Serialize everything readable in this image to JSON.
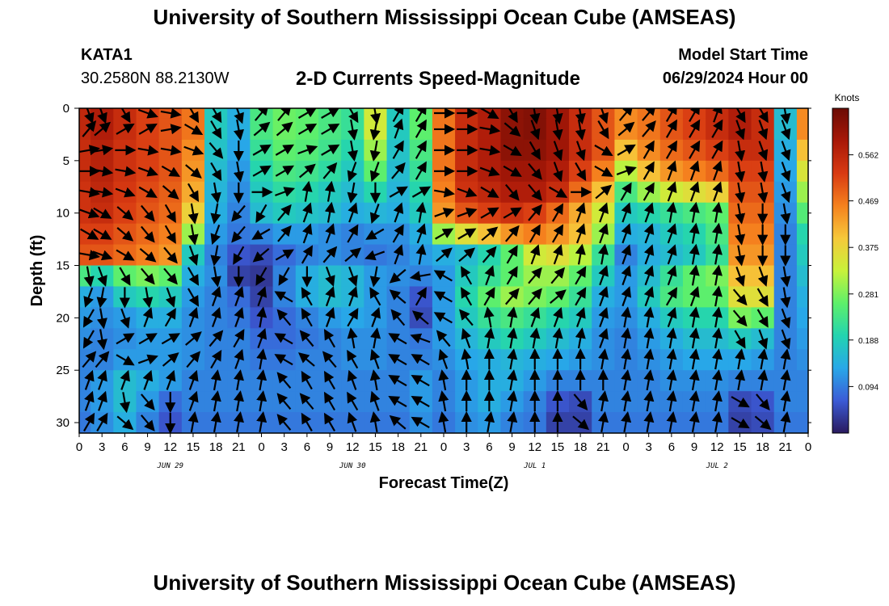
{
  "header": {
    "title": "University of Southern Mississippi Ocean Cube (AMSEAS)",
    "station": "KATA1",
    "coords": "30.2580N  88.2130W",
    "subtitle": "2-D Currents Speed-Magnitude",
    "start_label": "Model Start Time",
    "start_value": "06/29/2024 Hour 00"
  },
  "footer": {
    "title": "University of Southern Mississippi Ocean Cube (AMSEAS)"
  },
  "chart_data": {
    "type": "heatmap",
    "title": "2-D Currents Speed-Magnitude",
    "xlabel": "Forecast Time(Z)",
    "ylabel": "Depth (ft)",
    "x_ticks": [
      "0",
      "3",
      "6",
      "9",
      "12",
      "15",
      "18",
      "21",
      "0",
      "3",
      "6",
      "9",
      "12",
      "15",
      "18",
      "21",
      "0",
      "3",
      "6",
      "9",
      "12",
      "15",
      "18",
      "21",
      "0",
      "3",
      "6",
      "9",
      "12",
      "15",
      "18",
      "21",
      "0"
    ],
    "date_labels": [
      {
        "hour": 12,
        "label": "JUN 29"
      },
      {
        "hour": 36,
        "label": "JUN 30"
      },
      {
        "hour": 60,
        "label": "JUL 1"
      },
      {
        "hour": 84,
        "label": "JUL 2"
      }
    ],
    "xlim_hours": [
      0,
      96
    ],
    "ylim_depth_ft": [
      0,
      31
    ],
    "y_ticks": [
      0,
      5,
      10,
      15,
      20,
      25,
      30
    ],
    "y_inverted": true,
    "colorbar": {
      "label": "Knots",
      "ticks": [
        0.094,
        0.188,
        0.281,
        0.375,
        0.469,
        0.562
      ],
      "range": [
        0,
        0.656
      ],
      "colors": [
        "#2a1a5e",
        "#3b5bd6",
        "#28a8e8",
        "#23d4b0",
        "#5ef06a",
        "#c8f23a",
        "#f6c83a",
        "#f5811e",
        "#d83a12",
        "#a81808",
        "#6b0c04"
      ]
    },
    "depths_ft": [
      0,
      2,
      4,
      6,
      8,
      10,
      12,
      14,
      16,
      18,
      20,
      22,
      24,
      26,
      28,
      30
    ],
    "times_hours": [
      0,
      3,
      6,
      9,
      12,
      15,
      18,
      21,
      24,
      27,
      30,
      33,
      36,
      39,
      42,
      45,
      48,
      51,
      54,
      57,
      60,
      63,
      66,
      69,
      72,
      75,
      78,
      81,
      84,
      87,
      90,
      93,
      96
    ],
    "speed_knots": [
      [
        0.56,
        0.58,
        0.55,
        0.52,
        0.5,
        0.47,
        0.18,
        0.14,
        0.24,
        0.27,
        0.26,
        0.24,
        0.22,
        0.34,
        0.18,
        0.26,
        0.47,
        0.55,
        0.58,
        0.62,
        0.63,
        0.6,
        0.55,
        0.5,
        0.45,
        0.47,
        0.5,
        0.52,
        0.55,
        0.58,
        0.55,
        0.16,
        0.45
      ],
      [
        0.56,
        0.58,
        0.55,
        0.52,
        0.5,
        0.47,
        0.18,
        0.14,
        0.24,
        0.27,
        0.26,
        0.24,
        0.22,
        0.34,
        0.18,
        0.26,
        0.47,
        0.55,
        0.58,
        0.62,
        0.63,
        0.6,
        0.55,
        0.5,
        0.45,
        0.47,
        0.5,
        0.52,
        0.55,
        0.58,
        0.55,
        0.16,
        0.45
      ],
      [
        0.55,
        0.57,
        0.54,
        0.52,
        0.5,
        0.45,
        0.17,
        0.13,
        0.22,
        0.26,
        0.25,
        0.23,
        0.2,
        0.3,
        0.17,
        0.24,
        0.47,
        0.55,
        0.58,
        0.62,
        0.62,
        0.6,
        0.55,
        0.5,
        0.4,
        0.45,
        0.48,
        0.5,
        0.52,
        0.55,
        0.55,
        0.14,
        0.4
      ],
      [
        0.55,
        0.57,
        0.54,
        0.52,
        0.5,
        0.44,
        0.16,
        0.12,
        0.2,
        0.24,
        0.23,
        0.21,
        0.18,
        0.26,
        0.16,
        0.22,
        0.47,
        0.55,
        0.58,
        0.6,
        0.6,
        0.58,
        0.52,
        0.46,
        0.32,
        0.4,
        0.44,
        0.46,
        0.48,
        0.52,
        0.52,
        0.13,
        0.35
      ],
      [
        0.54,
        0.56,
        0.53,
        0.51,
        0.49,
        0.42,
        0.15,
        0.11,
        0.18,
        0.21,
        0.2,
        0.18,
        0.16,
        0.2,
        0.15,
        0.2,
        0.46,
        0.54,
        0.56,
        0.58,
        0.58,
        0.55,
        0.48,
        0.4,
        0.24,
        0.3,
        0.34,
        0.36,
        0.38,
        0.5,
        0.5,
        0.12,
        0.3
      ],
      [
        0.54,
        0.55,
        0.52,
        0.5,
        0.48,
        0.38,
        0.14,
        0.1,
        0.16,
        0.18,
        0.17,
        0.16,
        0.14,
        0.15,
        0.14,
        0.18,
        0.44,
        0.5,
        0.52,
        0.54,
        0.52,
        0.48,
        0.42,
        0.34,
        0.18,
        0.2,
        0.22,
        0.24,
        0.26,
        0.48,
        0.48,
        0.11,
        0.25
      ],
      [
        0.52,
        0.52,
        0.5,
        0.48,
        0.46,
        0.3,
        0.12,
        0.09,
        0.1,
        0.12,
        0.12,
        0.11,
        0.1,
        0.11,
        0.11,
        0.14,
        0.3,
        0.36,
        0.4,
        0.44,
        0.46,
        0.44,
        0.4,
        0.3,
        0.14,
        0.15,
        0.18,
        0.2,
        0.24,
        0.46,
        0.46,
        0.1,
        0.2
      ],
      [
        0.5,
        0.5,
        0.48,
        0.46,
        0.44,
        0.18,
        0.1,
        0.06,
        0.05,
        0.08,
        0.1,
        0.11,
        0.1,
        0.09,
        0.1,
        0.12,
        0.14,
        0.16,
        0.2,
        0.26,
        0.34,
        0.36,
        0.32,
        0.22,
        0.1,
        0.14,
        0.16,
        0.18,
        0.22,
        0.44,
        0.44,
        0.1,
        0.18
      ],
      [
        0.24,
        0.2,
        0.26,
        0.28,
        0.26,
        0.14,
        0.11,
        0.04,
        0.03,
        0.1,
        0.14,
        0.16,
        0.15,
        0.12,
        0.11,
        0.1,
        0.12,
        0.18,
        0.22,
        0.26,
        0.3,
        0.3,
        0.26,
        0.18,
        0.12,
        0.16,
        0.22,
        0.26,
        0.28,
        0.4,
        0.4,
        0.1,
        0.16
      ],
      [
        0.14,
        0.12,
        0.18,
        0.2,
        0.18,
        0.12,
        0.1,
        0.08,
        0.04,
        0.1,
        0.14,
        0.16,
        0.15,
        0.12,
        0.1,
        0.06,
        0.12,
        0.2,
        0.26,
        0.3,
        0.28,
        0.26,
        0.22,
        0.14,
        0.12,
        0.18,
        0.24,
        0.26,
        0.26,
        0.36,
        0.36,
        0.1,
        0.14
      ],
      [
        0.12,
        0.11,
        0.12,
        0.14,
        0.14,
        0.11,
        0.1,
        0.09,
        0.06,
        0.08,
        0.1,
        0.12,
        0.13,
        0.12,
        0.1,
        0.05,
        0.12,
        0.18,
        0.22,
        0.24,
        0.22,
        0.2,
        0.18,
        0.12,
        0.11,
        0.14,
        0.18,
        0.2,
        0.2,
        0.28,
        0.26,
        0.1,
        0.13
      ],
      [
        0.11,
        0.1,
        0.11,
        0.12,
        0.12,
        0.11,
        0.1,
        0.1,
        0.08,
        0.08,
        0.09,
        0.1,
        0.11,
        0.11,
        0.1,
        0.09,
        0.12,
        0.15,
        0.18,
        0.2,
        0.18,
        0.16,
        0.14,
        0.11,
        0.1,
        0.12,
        0.14,
        0.16,
        0.16,
        0.18,
        0.16,
        0.1,
        0.12
      ],
      [
        0.1,
        0.1,
        0.12,
        0.12,
        0.12,
        0.11,
        0.1,
        0.1,
        0.09,
        0.09,
        0.1,
        0.1,
        0.11,
        0.11,
        0.1,
        0.1,
        0.11,
        0.13,
        0.14,
        0.15,
        0.14,
        0.13,
        0.12,
        0.11,
        0.1,
        0.11,
        0.12,
        0.13,
        0.13,
        0.13,
        0.12,
        0.1,
        0.11
      ],
      [
        0.1,
        0.12,
        0.16,
        0.14,
        0.12,
        0.1,
        0.1,
        0.1,
        0.1,
        0.1,
        0.1,
        0.1,
        0.1,
        0.1,
        0.1,
        0.12,
        0.1,
        0.12,
        0.14,
        0.14,
        0.12,
        0.1,
        0.1,
        0.1,
        0.1,
        0.1,
        0.11,
        0.11,
        0.11,
        0.1,
        0.1,
        0.1,
        0.1
      ],
      [
        0.1,
        0.12,
        0.16,
        0.12,
        0.08,
        0.1,
        0.1,
        0.1,
        0.1,
        0.1,
        0.1,
        0.1,
        0.1,
        0.1,
        0.1,
        0.12,
        0.1,
        0.12,
        0.14,
        0.12,
        0.1,
        0.06,
        0.05,
        0.1,
        0.1,
        0.1,
        0.1,
        0.1,
        0.1,
        0.05,
        0.06,
        0.1,
        0.1
      ],
      [
        0.09,
        0.11,
        0.14,
        0.1,
        0.06,
        0.09,
        0.09,
        0.09,
        0.09,
        0.09,
        0.09,
        0.09,
        0.09,
        0.09,
        0.09,
        0.11,
        0.09,
        0.11,
        0.12,
        0.1,
        0.09,
        0.04,
        0.04,
        0.09,
        0.09,
        0.09,
        0.09,
        0.09,
        0.09,
        0.04,
        0.05,
        0.09,
        0.09
      ]
    ],
    "direction_deg": [
      [
        160,
        160,
        150,
        110,
        100,
        150,
        150,
        160,
        40,
        40,
        60,
        60,
        150,
        170,
        30,
        30,
        90,
        90,
        120,
        150,
        170,
        170,
        170,
        160,
        40,
        40,
        30,
        30,
        20,
        150,
        150,
        170,
        30
      ],
      [
        40,
        50,
        60,
        60,
        80,
        120,
        150,
        170,
        50,
        50,
        60,
        60,
        170,
        190,
        20,
        30,
        90,
        90,
        100,
        130,
        160,
        170,
        170,
        150,
        50,
        40,
        30,
        30,
        30,
        160,
        160,
        160,
        20
      ],
      [
        80,
        80,
        90,
        100,
        100,
        110,
        140,
        180,
        60,
        60,
        70,
        60,
        170,
        190,
        30,
        30,
        90,
        90,
        100,
        120,
        150,
        160,
        160,
        120,
        60,
        30,
        30,
        30,
        30,
        170,
        160,
        160,
        20
      ],
      [
        90,
        100,
        100,
        110,
        120,
        130,
        150,
        170,
        60,
        60,
        50,
        40,
        200,
        200,
        40,
        30,
        90,
        90,
        110,
        120,
        140,
        160,
        150,
        120,
        70,
        30,
        20,
        20,
        20,
        170,
        170,
        160,
        160
      ],
      [
        100,
        100,
        110,
        120,
        130,
        150,
        170,
        180,
        90,
        70,
        10,
        10,
        190,
        180,
        60,
        60,
        100,
        110,
        120,
        140,
        140,
        120,
        90,
        50,
        30,
        30,
        20,
        20,
        20,
        170,
        170,
        160,
        160
      ],
      [
        110,
        120,
        130,
        140,
        150,
        170,
        190,
        220,
        210,
        40,
        20,
        10,
        20,
        200,
        20,
        10,
        70,
        70,
        60,
        60,
        40,
        30,
        20,
        20,
        20,
        20,
        10,
        10,
        10,
        170,
        180,
        170,
        180
      ],
      [
        120,
        120,
        130,
        140,
        150,
        170,
        200,
        220,
        240,
        40,
        20,
        20,
        30,
        240,
        30,
        20,
        60,
        60,
        50,
        40,
        30,
        30,
        20,
        20,
        20,
        20,
        20,
        10,
        10,
        170,
        180,
        180,
        180
      ],
      [
        100,
        110,
        120,
        130,
        140,
        160,
        190,
        210,
        230,
        60,
        30,
        40,
        50,
        250,
        20,
        10,
        50,
        50,
        40,
        30,
        20,
        20,
        10,
        10,
        20,
        20,
        20,
        10,
        10,
        170,
        180,
        180,
        180
      ],
      [
        170,
        160,
        150,
        140,
        140,
        150,
        170,
        180,
        210,
        210,
        180,
        160,
        160,
        190,
        230,
        260,
        300,
        330,
        20,
        30,
        40,
        40,
        30,
        20,
        20,
        20,
        20,
        10,
        10,
        160,
        160,
        170,
        180
      ],
      [
        200,
        190,
        180,
        170,
        160,
        150,
        20,
        20,
        20,
        300,
        330,
        20,
        20,
        330,
        310,
        30,
        300,
        330,
        30,
        40,
        40,
        50,
        30,
        20,
        20,
        20,
        30,
        20,
        10,
        140,
        150,
        170,
        180
      ],
      [
        210,
        170,
        160,
        20,
        30,
        20,
        20,
        20,
        10,
        320,
        330,
        20,
        30,
        20,
        320,
        310,
        300,
        320,
        350,
        10,
        20,
        20,
        20,
        20,
        10,
        10,
        20,
        10,
        10,
        140,
        150,
        160,
        170
      ],
      [
        210,
        170,
        60,
        60,
        60,
        50,
        40,
        30,
        20,
        300,
        320,
        330,
        350,
        10,
        300,
        290,
        320,
        340,
        10,
        10,
        10,
        10,
        10,
        20,
        10,
        10,
        10,
        10,
        10,
        150,
        160,
        160,
        170
      ],
      [
        40,
        40,
        120,
        70,
        50,
        40,
        30,
        20,
        10,
        300,
        310,
        320,
        330,
        340,
        300,
        300,
        340,
        350,
        0,
        10,
        0,
        0,
        0,
        10,
        10,
        10,
        10,
        10,
        10,
        10,
        10,
        10,
        10
      ],
      [
        20,
        20,
        20,
        20,
        20,
        20,
        10,
        10,
        10,
        320,
        330,
        330,
        340,
        350,
        300,
        300,
        350,
        0,
        0,
        10,
        0,
        0,
        0,
        0,
        10,
        10,
        10,
        10,
        10,
        10,
        10,
        10,
        10
      ],
      [
        20,
        20,
        170,
        140,
        180,
        20,
        10,
        10,
        10,
        320,
        320,
        330,
        330,
        340,
        300,
        300,
        350,
        0,
        0,
        10,
        0,
        0,
        140,
        10,
        10,
        10,
        10,
        10,
        10,
        120,
        140,
        10,
        10
      ],
      [
        30,
        30,
        130,
        140,
        180,
        10,
        10,
        10,
        10,
        320,
        330,
        330,
        340,
        350,
        310,
        300,
        350,
        0,
        10,
        10,
        0,
        0,
        130,
        10,
        10,
        10,
        10,
        10,
        10,
        120,
        130,
        10,
        10
      ]
    ]
  }
}
